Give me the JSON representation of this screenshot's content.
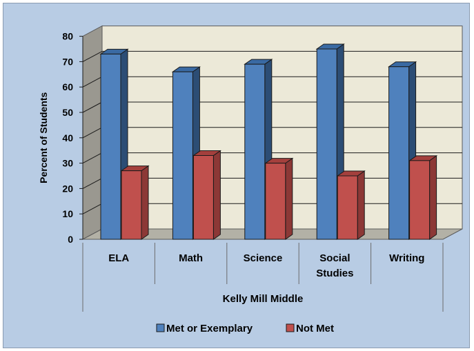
{
  "chart_data": {
    "type": "bar",
    "categories": [
      [
        "ELA"
      ],
      [
        "Math"
      ],
      [
        "Science"
      ],
      [
        "Social",
        "Studies"
      ],
      [
        "Writing"
      ]
    ],
    "group_label": "Kelly Mill Middle",
    "series": [
      {
        "name": "Met or Exemplary",
        "values": [
          73,
          66,
          69,
          75,
          68
        ]
      },
      {
        "name": "Not Met",
        "values": [
          27,
          33,
          30,
          25,
          31
        ]
      }
    ],
    "ylabel": "Percent of Students",
    "ylim": [
      0,
      80
    ],
    "yticks": [
      "0",
      "10",
      "20",
      "30",
      "40",
      "50",
      "60",
      "70",
      "80"
    ],
    "grid": true,
    "style": "3d-clustered-column",
    "legend_position": "bottom",
    "colors": {
      "background": "#b8cce4",
      "wall": "#ece9d8",
      "floor": "#b3b1a6",
      "series_front": [
        "#4f81bd",
        "#c0504d"
      ],
      "series_side": [
        "#2c4d75",
        "#8c3836"
      ],
      "series_top": [
        "#3a6aa3",
        "#a4403d"
      ]
    }
  }
}
